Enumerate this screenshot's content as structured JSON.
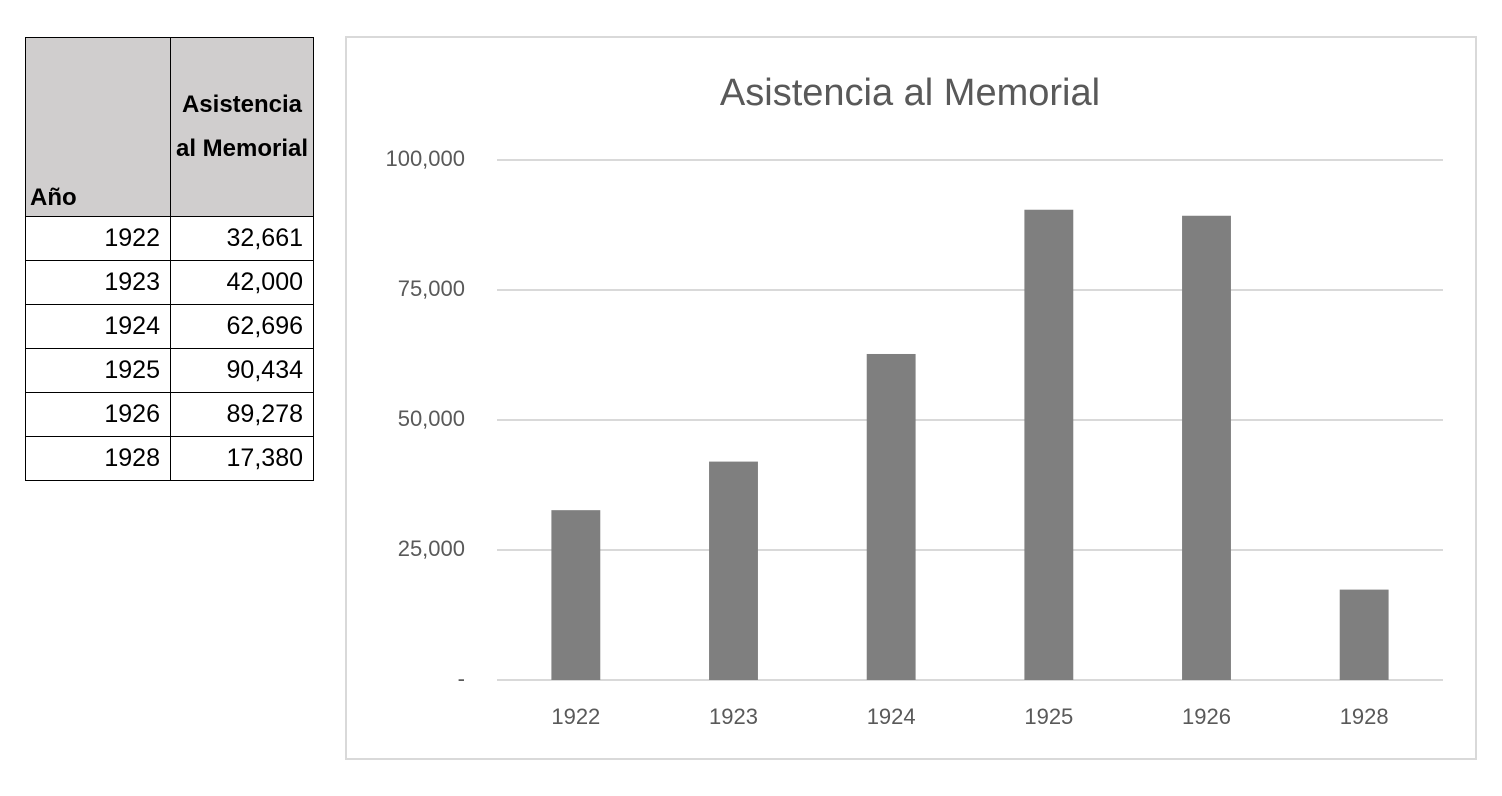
{
  "table": {
    "header": [
      "Año",
      "Asistencia al Memorial"
    ],
    "rows": [
      [
        "1922",
        "32,661"
      ],
      [
        "1923",
        "42,000"
      ],
      [
        "1924",
        "62,696"
      ],
      [
        "1925",
        "90,434"
      ],
      [
        "1926",
        "89,278"
      ],
      [
        "1928",
        "17,380"
      ]
    ]
  },
  "chart_data": {
    "type": "bar",
    "title": "Asistencia al Memorial",
    "categories": [
      "1922",
      "1923",
      "1924",
      "1925",
      "1926",
      "1928"
    ],
    "values": [
      32661,
      42000,
      62696,
      90434,
      89278,
      17380
    ],
    "color": "#7f7f7f",
    "ylim": [
      0,
      100000
    ],
    "yticks": [
      {
        "value": 0,
        "label": "-"
      },
      {
        "value": 25000,
        "label": "25,000"
      },
      {
        "value": 50000,
        "label": "50,000"
      },
      {
        "value": 75000,
        "label": "75,000"
      },
      {
        "value": 100000,
        "label": "100,000"
      }
    ],
    "grid": true
  }
}
